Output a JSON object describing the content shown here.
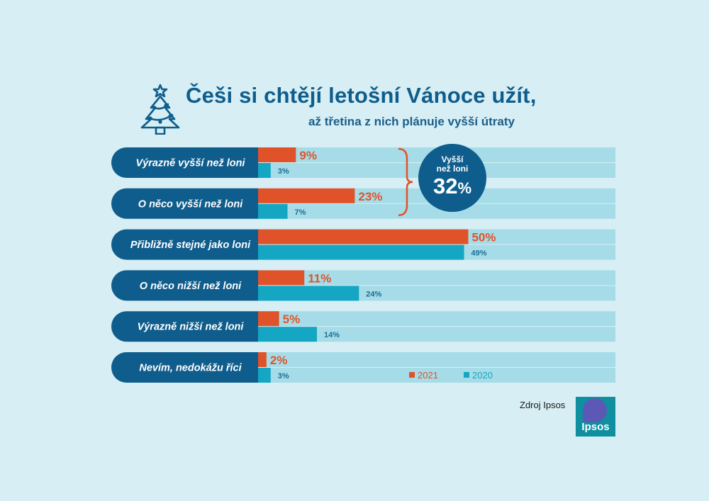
{
  "header": {
    "title": "Češi si chtějí letošní Vánoce užít,",
    "subtitle": "až třetina z nich plánuje vyšší útraty",
    "icon": "christmas-tree-icon"
  },
  "chart_data": {
    "type": "bar",
    "orientation": "horizontal",
    "categories": [
      "Výrazně vyšší než loni",
      "O něco vyšší než loni",
      "Přibližně stejné jako loni",
      "O něco nižší než loni",
      "Výrazně nižší než loni",
      "Nevím, nedokážu říci"
    ],
    "series": [
      {
        "name": "2021",
        "color": "#e0532a",
        "values": [
          9,
          23,
          50,
          11,
          5,
          2
        ]
      },
      {
        "name": "2020",
        "color": "#14a6c3",
        "values": [
          3,
          7,
          49,
          24,
          14,
          3
        ]
      }
    ],
    "value_labels_2021": [
      "9%",
      "23%",
      "50%",
      "11%",
      "5%",
      "2%"
    ],
    "value_labels_2020": [
      "3%",
      "7%",
      "49%",
      "24%",
      "14%",
      "3%"
    ],
    "xlim": [
      0,
      85
    ],
    "legend_position": "bottom-right",
    "annotation": {
      "label": "Vyšší\nnež loni",
      "value": "32",
      "unit": "%"
    }
  },
  "source": "Zdroj Ipsos",
  "logo": {
    "text": "Ipsos"
  },
  "colors": {
    "background": "#d6eef4",
    "label_bar": "#0f5d8c",
    "track": "#a6dce8",
    "bar_2021": "#e0532a",
    "bar_2020": "#14a6c3"
  }
}
